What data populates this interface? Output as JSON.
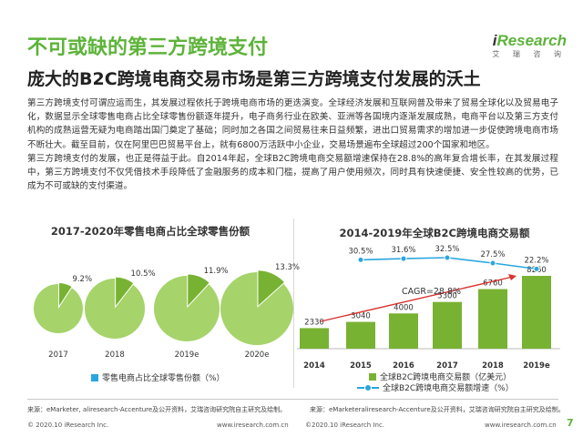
{
  "page": {
    "title": "不可或缺的第三方跨境支付",
    "subtitle": "庞大的B2C跨境电商交易市场是第三方跨境支付发展的沃土",
    "logo_text": "Research",
    "logo_prefix": "i",
    "logo_cn": "艾 瑞 咨 询",
    "paragraph_1": "第三方跨境支付可谓应运而生，其发展过程依托于跨境电商市场的更迭演变。全球经济发展和互联网普及带来了贸易全球化以及贸易电子化，数据显示全球零售电商占比全球零售份额逐年提升，电子商务行业在欧美、亚洲等各国境内逐渐发展成熟，电商平台以及第三方支付机构的成熟运营无疑为电商踏出国门奠定了基础；同时加之各国之间贸易往来日益频繁，进出口贸易需求的增加进一步促使跨境电商市场不断壮大。截至目前，仅在阿里巴巴贸易平台上，就有6800万活跃中小企业，交易场景遍布全球超过200个国家和地区。",
    "paragraph_2": "第三方跨境支付的发展，也正是得益于此。自2014年起，全球B2C跨境电商交易额增速保持在28.8%的高年复合增长率，在其发展过程中，第三方跨境支付不仅凭借技术手段降低了金融服务的成本和门槛，提高了用户使用频次，同时具有快速便捷、安全性较高的优势，已成为不可或缺的支付渠道。",
    "source_left": "来源：eMarketer, aliresearch-Accenture及公开资料，艾瑞咨询研究院自主研究及绘制。",
    "source_right": "来源：eMarketeraliresearch-Accenture及公开资料，艾瑞咨询研究院自主研究及绘制。",
    "footer_left_1": "© 2020.10 iResearch Inc.",
    "footer_url_1": "www.iresearch.com.cn",
    "footer_left_2": "©2020.10 iResearch Inc.",
    "footer_url_2": "www.iresearch.com.cn",
    "page_number": "7",
    "colors": {
      "accent": "#5db33a",
      "pie_light": "#a6d36a",
      "pie_dark": "#78b232",
      "line": "#2aa6df"
    }
  },
  "chart_data": [
    {
      "type": "pie",
      "title": "2017-2020年零售电商占比全球零售份额",
      "categories": [
        "2017",
        "2018",
        "2019e",
        "2020e"
      ],
      "values": [
        9.2,
        10.5,
        11.9,
        13.3
      ],
      "value_labels": [
        "9.2%",
        "10.5%",
        "11.9%",
        "13.3%"
      ],
      "unit": "%",
      "legend": [
        "零售电商占比全球零售份额（%）"
      ]
    },
    {
      "type": "bar",
      "title": "2014-2019年全球B2C跨境电商交易额",
      "categories": [
        "2014",
        "2015",
        "2016",
        "2017",
        "2018",
        "2019e"
      ],
      "series": [
        {
          "name": "全球B2C跨境电商交易额（亿美元）",
          "type": "bar",
          "values": [
            2330,
            3040,
            4000,
            5300,
            6760,
            8260
          ]
        },
        {
          "name": "全球B2C跨境电商交易额增速（%）",
          "type": "line",
          "values": [
            null,
            30.5,
            31.6,
            32.5,
            27.5,
            22.2
          ],
          "labels": [
            "",
            "30.5%",
            "31.6%",
            "32.5%",
            "27.5%",
            "22.2%"
          ]
        }
      ],
      "annotation": "CAGR=28.8%",
      "legend_position": "bottom"
    }
  ]
}
